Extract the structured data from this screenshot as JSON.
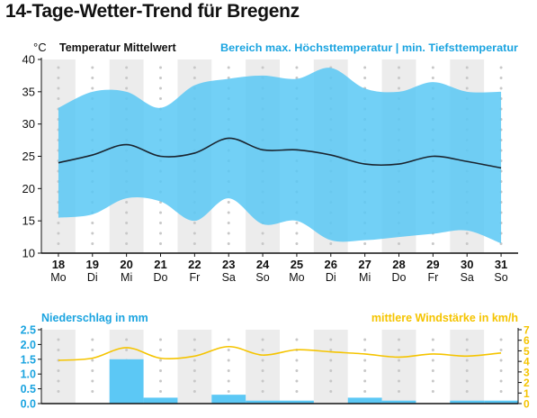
{
  "page": {
    "title": "14-Tage-Wetter-Trend für Bregenz"
  },
  "colors": {
    "temp_band": "#59c8f5",
    "temp_line": "#1a2530",
    "precip_bar": "#5cc8f5",
    "wind_line": "#f5c400",
    "right_header": "#1ba4e0",
    "alt_column": "#ececec",
    "dots": "#c8c8c8"
  },
  "chart_data": [
    {
      "type": "area",
      "unit_label": "°C",
      "left_header": "Temperatur Mittelwert",
      "right_header": "Bereich max. Höchsttemperatur | min. Tiefsttemperatur",
      "ylim": [
        10,
        40
      ],
      "yticks": [
        10,
        15,
        20,
        25,
        30,
        35,
        40
      ],
      "days": [
        "18",
        "19",
        "20",
        "21",
        "22",
        "23",
        "24",
        "25",
        "26",
        "27",
        "28",
        "29",
        "30",
        "31"
      ],
      "weekdays": [
        "Mo",
        "Di",
        "Mi",
        "Do",
        "Fr",
        "Sa",
        "So",
        "Mo",
        "Di",
        "Mi",
        "Do",
        "Fr",
        "Sa",
        "So"
      ],
      "grid": "alternating-columns",
      "series": [
        {
          "values": [
            32.5,
            35,
            35,
            32.5,
            36,
            37,
            37.5,
            37,
            38.7,
            35.5,
            35,
            36.5,
            35,
            35
          ]
        },
        {
          "values": [
            15.5,
            16,
            18.5,
            18,
            15,
            18.5,
            14.5,
            15,
            12,
            12,
            12.5,
            13,
            13.5,
            11.5
          ]
        },
        {
          "values": [
            24,
            25.2,
            26.8,
            25,
            25.5,
            27.8,
            26,
            26,
            25.2,
            23.8,
            23.8,
            25,
            24.2,
            23.2
          ]
        }
      ]
    },
    {
      "type": "bar",
      "left_header": "Niederschlag in mm",
      "right_header": "mittlere Windstärke in km/h",
      "ylim_left": [
        0,
        2.5
      ],
      "yticks_left": [
        "0.0",
        "0.5",
        "1.0",
        "1.5",
        "2.0",
        "2.5"
      ],
      "ylim_right": [
        0,
        7
      ],
      "yticks_right": [
        "0",
        "1",
        "2",
        "3",
        "4",
        "5",
        "6",
        "7"
      ],
      "series": [
        {
          "values": [
            0,
            0,
            1.5,
            0.2,
            0,
            0.3,
            0.1,
            0.1,
            0,
            0.2,
            0.1,
            0,
            0.1,
            0.1
          ]
        },
        {
          "values": [
            4.1,
            4.3,
            5.3,
            4.3,
            4.5,
            5.4,
            4.6,
            5.1,
            4.9,
            4.7,
            4.4,
            4.7,
            4.5,
            4.8
          ]
        }
      ]
    }
  ]
}
